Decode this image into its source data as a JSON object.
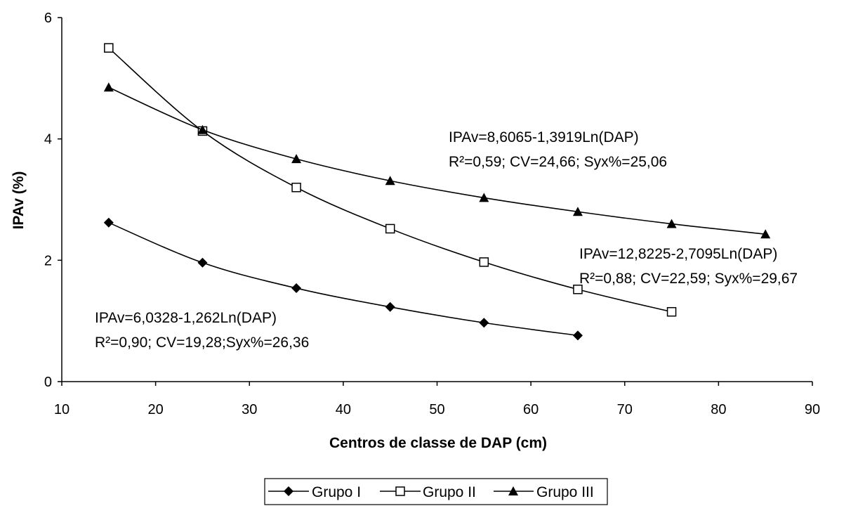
{
  "chart_data": {
    "type": "line",
    "title": "",
    "xlabel": "Centros de classe de DAP (cm)",
    "ylabel": "IPAv (%)",
    "xlim": [
      10,
      90
    ],
    "ylim": [
      0,
      6
    ],
    "x_ticks": [
      "10",
      "20",
      "30",
      "40",
      "50",
      "60",
      "70",
      "80",
      "90"
    ],
    "y_ticks": [
      "0",
      "2",
      "4",
      "6"
    ],
    "grid": false,
    "legend_position": "bottom",
    "series": [
      {
        "name": "Grupo I",
        "marker": "diamond",
        "color": "#000000",
        "x": [
          15,
          25,
          35,
          45,
          55,
          65
        ],
        "y": [
          2.62,
          1.96,
          1.54,
          1.23,
          0.97,
          0.76
        ]
      },
      {
        "name": "Grupo II",
        "marker": "square-open",
        "color": "#000000",
        "x": [
          15,
          25,
          35,
          45,
          55,
          65,
          75
        ],
        "y": [
          5.5,
          4.13,
          3.2,
          2.52,
          1.97,
          1.52,
          1.15
        ]
      },
      {
        "name": "Grupo III",
        "marker": "triangle",
        "color": "#000000",
        "x": [
          15,
          25,
          35,
          45,
          55,
          65,
          75,
          85
        ],
        "y": [
          4.85,
          4.15,
          3.67,
          3.31,
          3.03,
          2.8,
          2.6,
          2.43
        ]
      }
    ],
    "annotations": [
      {
        "line1": "IPAv=8,6065-1,3919Ln(DAP)",
        "line2": "R²=0,59;  CV=24,66;  Syx%=25,06"
      },
      {
        "line1": "IPAv=12,8225-2,7095Ln(DAP)",
        "line2": "R²=0,88;  CV=22,59;  Syx%=29,67"
      },
      {
        "line1": "IPAv=6,0328-1,262Ln(DAP)",
        "line2": "R²=0,90;  CV=19,28;Syx%=26,36"
      }
    ]
  }
}
